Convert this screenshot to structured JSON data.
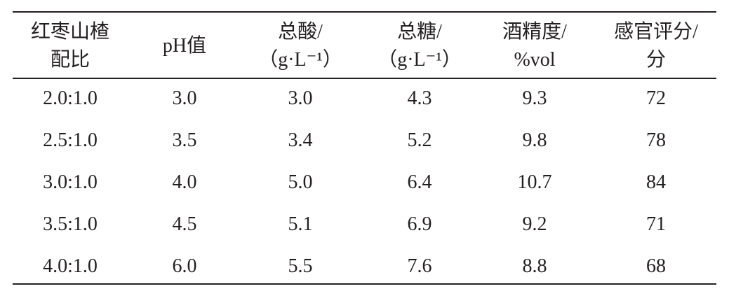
{
  "table": {
    "header": [
      [
        "红枣山楂",
        "配比"
      ],
      [
        "pH值"
      ],
      [
        "总酸/",
        "（g·L⁻¹）"
      ],
      [
        "总糖/",
        "（g·L⁻¹）"
      ],
      [
        "酒精度/",
        "%vol"
      ],
      [
        "感官评分/",
        "分"
      ]
    ],
    "rows": [
      [
        "2.0:1.0",
        "3.0",
        "3.0",
        "4.3",
        "9.3",
        "72"
      ],
      [
        "2.5:1.0",
        "3.5",
        "3.4",
        "5.2",
        "9.8",
        "78"
      ],
      [
        "3.0:1.0",
        "4.0",
        "5.0",
        "6.4",
        "10.7",
        "84"
      ],
      [
        "3.5:1.0",
        "4.5",
        "5.1",
        "6.9",
        "9.2",
        "71"
      ],
      [
        "4.0:1.0",
        "6.0",
        "5.5",
        "7.6",
        "8.8",
        "68"
      ]
    ]
  }
}
